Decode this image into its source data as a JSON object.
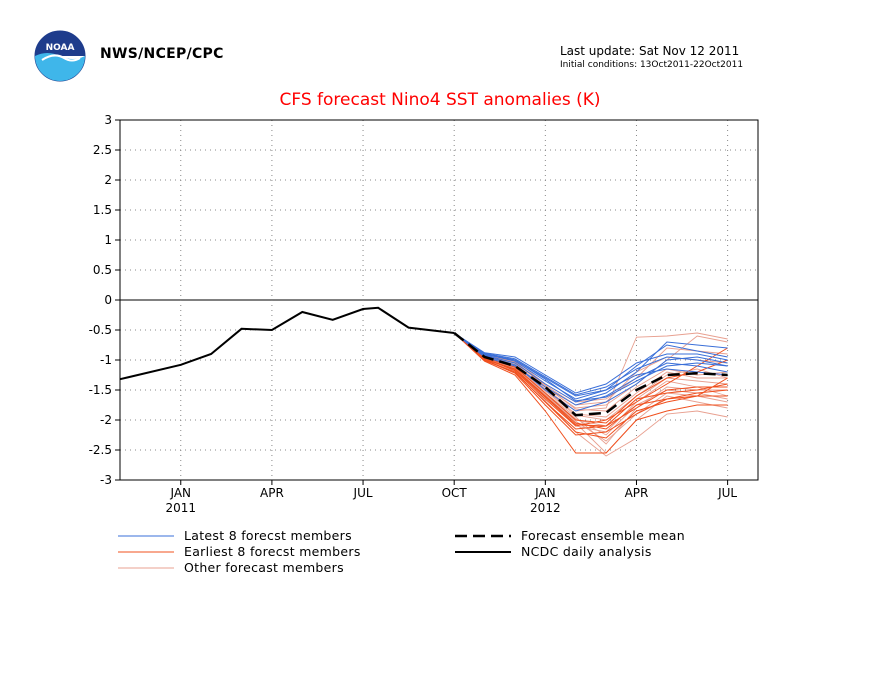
{
  "header": {
    "agency": "NWS/NCEP/CPC",
    "last_update": "Last update: Sat Nov 12 2011",
    "initial_conditions": "Initial conditions: 13Oct2011-22Oct2011",
    "logo_text": "NOAA"
  },
  "colors": {
    "title": "#ff0000",
    "latest": "#3a6fd8",
    "earliest": "#f0501e",
    "other": "#e8a090",
    "analysis": "#000000"
  },
  "chart_data": {
    "type": "line",
    "title": "CFS forecast Nino4 SST anomalies (K)",
    "ylim": [
      -3,
      3
    ],
    "yticks": [
      "3",
      "2.5",
      "2",
      "1.5",
      "1",
      "0.5",
      "0",
      "-0.5",
      "-1",
      "-1.5",
      "-2",
      "-2.5",
      "-3"
    ],
    "xticks": [
      {
        "label": "JAN",
        "sub": "2011",
        "month": 0
      },
      {
        "label": "APR",
        "sub": "",
        "month": 3
      },
      {
        "label": "JUL",
        "sub": "",
        "month": 6
      },
      {
        "label": "OCT",
        "sub": "",
        "month": 9
      },
      {
        "label": "JAN",
        "sub": "2012",
        "month": 12
      },
      {
        "label": "APR",
        "sub": "",
        "month": 15
      },
      {
        "label": "JUL",
        "sub": "",
        "month": 18
      }
    ],
    "xlim_months": [
      -2,
      19
    ],
    "grid": true,
    "observed": {
      "name": "NCDC daily analysis",
      "x_months": [
        -2,
        0,
        1,
        2,
        3,
        4,
        5,
        6,
        6.5,
        7.5,
        9
      ],
      "values": [
        -1.32,
        -1.08,
        -0.9,
        -0.48,
        -0.5,
        -0.2,
        -0.33,
        -0.15,
        -0.13,
        -0.46,
        -0.55
      ]
    },
    "ensemble_mean": {
      "name": "Forecast ensemble mean",
      "x_months": [
        9,
        10,
        11,
        12,
        13,
        14,
        15,
        16,
        17,
        18
      ],
      "values": [
        -0.55,
        -0.95,
        -1.1,
        -1.45,
        -1.92,
        -1.88,
        -1.5,
        -1.25,
        -1.22,
        -1.25
      ]
    },
    "latest_members": {
      "name": "Latest 8 forecst members",
      "x_months": [
        9,
        10,
        11,
        12,
        13,
        14,
        15,
        16,
        17,
        18
      ],
      "series": [
        [
          -0.55,
          -0.9,
          -1.0,
          -1.3,
          -1.6,
          -1.5,
          -1.1,
          -0.75,
          -0.85,
          -0.95
        ],
        [
          -0.55,
          -0.88,
          -0.95,
          -1.25,
          -1.55,
          -1.4,
          -1.05,
          -0.9,
          -0.9,
          -1.0
        ],
        [
          -0.55,
          -0.92,
          -1.05,
          -1.4,
          -1.7,
          -1.55,
          -1.2,
          -0.7,
          -0.75,
          -0.8
        ],
        [
          -0.55,
          -0.95,
          -1.1,
          -1.45,
          -1.75,
          -1.6,
          -1.3,
          -1.05,
          -1.1,
          -1.2
        ],
        [
          -0.55,
          -0.9,
          -1.02,
          -1.35,
          -1.65,
          -1.5,
          -1.25,
          -1.15,
          -1.2,
          -1.25
        ],
        [
          -0.55,
          -0.93,
          -1.08,
          -1.5,
          -1.85,
          -1.7,
          -1.4,
          -1.0,
          -0.95,
          -1.05
        ],
        [
          -0.55,
          -0.91,
          -1.0,
          -1.32,
          -1.68,
          -1.62,
          -1.35,
          -1.1,
          -1.05,
          -1.1
        ],
        [
          -0.55,
          -0.89,
          -0.98,
          -1.28,
          -1.58,
          -1.45,
          -1.15,
          -0.95,
          -1.0,
          -1.1
        ]
      ]
    },
    "earliest_members": {
      "name": "Earliest 8 forecst members",
      "x_months": [
        9,
        10,
        11,
        12,
        13,
        14,
        15,
        16,
        17,
        18
      ],
      "series": [
        [
          -0.55,
          -1.0,
          -1.2,
          -1.7,
          -2.15,
          -2.1,
          -1.8,
          -1.5,
          -1.45,
          -1.45
        ],
        [
          -0.55,
          -0.98,
          -1.15,
          -1.6,
          -2.05,
          -2.15,
          -1.75,
          -1.65,
          -1.6,
          -1.6
        ],
        [
          -0.55,
          -1.02,
          -1.25,
          -1.85,
          -2.55,
          -2.55,
          -2.0,
          -1.85,
          -1.75,
          -1.75
        ],
        [
          -0.55,
          -0.96,
          -1.12,
          -1.55,
          -2.0,
          -2.05,
          -1.6,
          -1.3,
          -1.2,
          -1.0
        ],
        [
          -0.55,
          -1.0,
          -1.22,
          -1.75,
          -2.25,
          -2.2,
          -1.9,
          -1.65,
          -1.55,
          -1.5
        ],
        [
          -0.55,
          -0.97,
          -1.18,
          -1.65,
          -2.1,
          -2.0,
          -1.7,
          -1.4,
          -1.1,
          -0.8
        ],
        [
          -0.55,
          -1.01,
          -1.2,
          -1.7,
          -2.2,
          -2.3,
          -1.85,
          -1.7,
          -1.6,
          -1.3
        ],
        [
          -0.55,
          -0.99,
          -1.16,
          -1.62,
          -2.08,
          -2.1,
          -1.65,
          -1.55,
          -1.5,
          -1.4
        ]
      ]
    },
    "other_members": {
      "name": "Other forecast members",
      "x_months": [
        9,
        10,
        11,
        12,
        13,
        14,
        15,
        16,
        17,
        18
      ],
      "series": [
        [
          -0.55,
          -0.92,
          -1.05,
          -1.5,
          -1.9,
          -1.95,
          -1.55,
          -1.2,
          -1.3,
          -1.3
        ],
        [
          -0.55,
          -0.95,
          -1.08,
          -1.6,
          -2.1,
          -2.2,
          -1.7,
          -1.35,
          -1.45,
          -1.6
        ],
        [
          -0.55,
          -0.9,
          -1.02,
          -1.45,
          -1.8,
          -1.75,
          -1.4,
          -1.0,
          -0.6,
          -0.7
        ],
        [
          -0.55,
          -0.96,
          -1.1,
          -1.55,
          -1.95,
          -2.4,
          -1.8,
          -1.45,
          -1.5,
          -1.5
        ],
        [
          -0.55,
          -0.93,
          -1.06,
          -1.48,
          -1.85,
          -1.8,
          -0.62,
          -0.6,
          -0.55,
          -0.65
        ],
        [
          -0.55,
          -0.97,
          -1.12,
          -1.62,
          -2.05,
          -2.55,
          -2.0,
          -1.6,
          -1.7,
          -1.8
        ],
        [
          -0.55,
          -0.91,
          -1.03,
          -1.42,
          -1.75,
          -1.7,
          -1.2,
          -0.95,
          -1.0,
          -1.05
        ],
        [
          -0.55,
          -0.94,
          -1.09,
          -1.58,
          -2.0,
          -2.1,
          -1.65,
          -1.3,
          -1.35,
          -1.4
        ],
        [
          -0.55,
          -0.98,
          -1.14,
          -1.68,
          -2.2,
          -2.6,
          -2.3,
          -1.9,
          -1.85,
          -1.95
        ],
        [
          -0.55,
          -0.92,
          -1.04,
          -1.44,
          -1.82,
          -1.85,
          -1.45,
          -1.15,
          -1.25,
          -1.2
        ],
        [
          -0.55,
          -0.95,
          -1.1,
          -1.52,
          -1.92,
          -2.0,
          -1.6,
          -1.25,
          -1.15,
          -1.3
        ],
        [
          -0.55,
          -0.96,
          -1.11,
          -1.57,
          -1.98,
          -2.25,
          -1.75,
          -1.5,
          -1.55,
          -1.65
        ],
        [
          -0.55,
          -0.9,
          -1.0,
          -1.4,
          -1.7,
          -1.65,
          -1.3,
          -0.8,
          -0.85,
          -0.9
        ],
        [
          -0.55,
          -0.97,
          -1.13,
          -1.6,
          -2.02,
          -2.35,
          -1.9,
          -1.55,
          -1.6,
          -1.7
        ]
      ]
    },
    "legend": [
      {
        "label": "Latest 8 forecst members",
        "style": "latest"
      },
      {
        "label": "Earliest 8 forecst members",
        "style": "earliest"
      },
      {
        "label": "Other forecast members",
        "style": "other"
      },
      {
        "label": "Forecast ensemble mean",
        "style": "mean"
      },
      {
        "label": "NCDC daily analysis",
        "style": "analysis"
      }
    ]
  }
}
